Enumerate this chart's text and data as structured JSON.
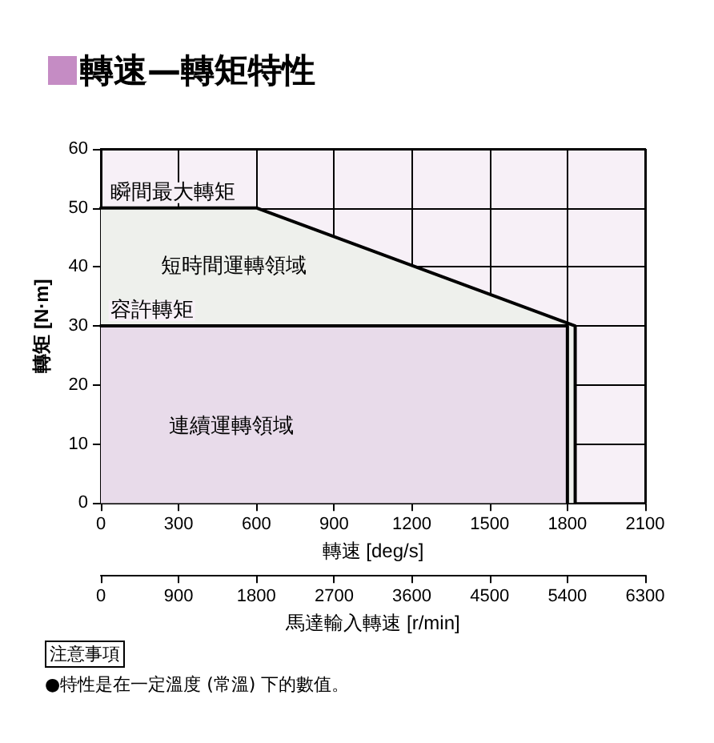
{
  "chart_data": {
    "type": "area",
    "title": "轉速—轉矩特性",
    "xlabel": "轉速 [deg/s]",
    "ylabel": "轉矩 [N·m]",
    "x2label": "馬達輸入轉速 [r/min]",
    "xlim": [
      0,
      2100
    ],
    "xticks": [
      0,
      300,
      600,
      900,
      1200,
      1500,
      1800,
      2100
    ],
    "x2lim": [
      0,
      6300
    ],
    "x2ticks": [
      0,
      900,
      1800,
      2700,
      3600,
      4500,
      5400,
      6300
    ],
    "ylim": [
      0,
      60
    ],
    "yticks": [
      0,
      10,
      20,
      30,
      40,
      50,
      60
    ],
    "series": [
      {
        "color": "#eef0ec",
        "x": [
          0,
          600,
          1830,
          1830
        ],
        "values": [
          50,
          50,
          30,
          0
        ]
      },
      {
        "color": "#e8dbea",
        "x": [
          0,
          1800,
          1800
        ],
        "values": [
          30,
          30,
          0
        ]
      }
    ],
    "annotations": [
      {
        "text": "瞬間最大轉矩",
        "x": 30,
        "y": 50
      },
      "短時間運轉領域",
      {
        "text": "容許轉矩",
        "x": 30,
        "y": 30
      },
      "連續運轉領域",
      "注意事項",
      "●特性是在一定溫度 (常溫) 下的數值。"
    ],
    "grid": true,
    "marker": "none",
    "line_style": "solid"
  }
}
